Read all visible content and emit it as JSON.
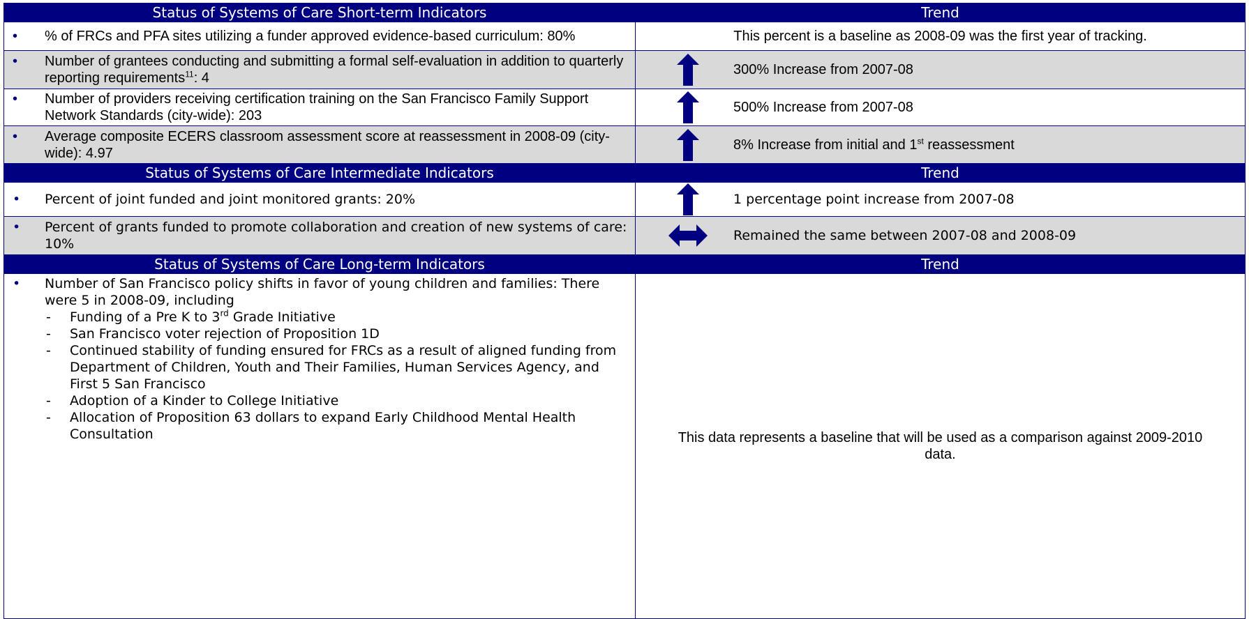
{
  "sections": [
    {
      "header": {
        "title": "Status of Systems of Care Short-term Indicators",
        "trend": "Trend"
      },
      "rows": [
        {
          "indicator": [
            "% of FRCs and PFA sites utilizing a funder approved evidence-based curriculum: 80%"
          ],
          "trend": {
            "text": [
              "This percent is a baseline as 2008-09 was the first year of tracking."
            ]
          }
        },
        {
          "indicator": [
            "Number of grantees conducting and submitting a formal self-evaluation in addition to quarterly reporting requirements",
            {
              "sup": "11"
            },
            ": 4"
          ],
          "trend": {
            "icon": "up",
            "text": [
              "300% Increase from 2007-08"
            ]
          },
          "shaded": true
        },
        {
          "indicator": [
            "Number of providers receiving certification training on the San Francisco Family Support Network Standards (city-wide): 203"
          ],
          "trend": {
            "icon": "up",
            "text": [
              "500% Increase from 2007-08"
            ]
          }
        },
        {
          "indicator": [
            "Average composite ECERS classroom assessment score at reassessment in 2008-09 (city-wide): 4.97"
          ],
          "trend": {
            "icon": "up",
            "text": [
              "8% Increase from initial and 1",
              {
                "sup": "st"
              },
              " reassessment"
            ]
          },
          "shaded": true
        }
      ]
    },
    {
      "header": {
        "title": "Status of Systems of Care Intermediate Indicators",
        "trend": "Trend"
      },
      "rows": [
        {
          "indicator": [
            "Percent of joint funded and joint monitored grants: 20%"
          ],
          "trend": {
            "icon": "up",
            "text": [
              "1 percentage point increase from 2007-08"
            ]
          }
        },
        {
          "indicator": [
            "Percent of grants funded to promote collaboration and creation of new systems of care: 10%"
          ],
          "trend": {
            "icon": "both",
            "text": [
              "Remained the same between 2007-08 and 2008-09"
            ]
          },
          "shaded": true
        }
      ]
    },
    {
      "header": {
        "title": "Status of Systems of Care Long-term Indicators",
        "trend": "Trend"
      },
      "rows": [
        {
          "indicator": [
            "Number of San Francisco policy shifts in favor of young children and families: There were 5 in 2008-09, including"
          ],
          "subitems": [
            [
              "Funding of a Pre K to 3",
              {
                "sup": "rd"
              },
              " Grade Initiative"
            ],
            [
              "San Francisco voter rejection of Proposition 1D"
            ],
            [
              "Continued stability of funding ensured for FRCs as a result of aligned funding from Department of Children, Youth and Their Families, Human Services Agency, and First 5 San Francisco"
            ],
            [
              "Adoption of a Kinder to College Initiative"
            ],
            [
              "Allocation of Proposition 63 dollars to expand Early Childhood Mental Health Consultation"
            ]
          ],
          "trend": {
            "text": [
              "This data represents a baseline that will be used as a comparison against 2009-2010 data."
            ]
          }
        }
      ]
    }
  ]
}
